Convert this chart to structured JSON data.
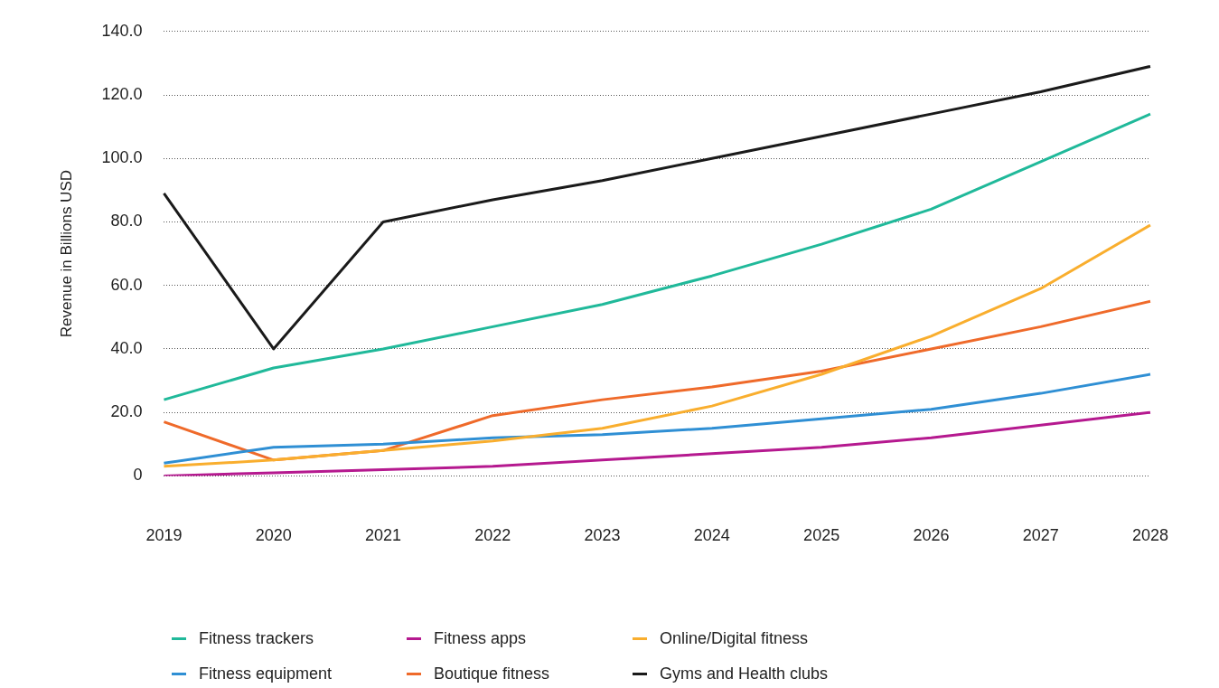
{
  "chart_data": {
    "type": "line",
    "ylabel": "Revenue in Billions USD",
    "categories": [
      "2019",
      "2020",
      "2021",
      "2022",
      "2023",
      "2024",
      "2025",
      "2026",
      "2027",
      "2028"
    ],
    "series": [
      {
        "name": "Fitness trackers",
        "color": "#20b99a",
        "values": [
          24,
          34,
          40,
          47,
          54,
          63,
          73,
          84,
          99,
          114
        ]
      },
      {
        "name": "Fitness apps",
        "color": "#b5198f",
        "values": [
          0,
          1,
          2,
          3,
          5,
          7,
          9,
          12,
          16,
          20
        ]
      },
      {
        "name": "Online/Digital fitness",
        "color": "#f9ae2e",
        "values": [
          3,
          5,
          8,
          11,
          15,
          22,
          32,
          44,
          59,
          79
        ]
      },
      {
        "name": "Fitness equipment",
        "color": "#2f8fd4",
        "values": [
          4,
          9,
          10,
          12,
          13,
          15,
          18,
          21,
          26,
          32
        ]
      },
      {
        "name": "Boutique fitness",
        "color": "#ef6a2a",
        "values": [
          17,
          5,
          8,
          19,
          24,
          28,
          33,
          40,
          47,
          55
        ]
      },
      {
        "name": "Gyms and Health clubs",
        "color": "#1a1a1a",
        "values": [
          89,
          40,
          80,
          87,
          93,
          100,
          107,
          114,
          121,
          129
        ]
      }
    ],
    "ylim": [
      0,
      140
    ],
    "yticks": [
      {
        "value": 0,
        "label": "0"
      },
      {
        "value": 20,
        "label": "20.0"
      },
      {
        "value": 40,
        "label": "40.0"
      },
      {
        "value": 60,
        "label": "60.0"
      },
      {
        "value": 80,
        "label": "80.0"
      },
      {
        "value": 100,
        "label": "100.0"
      },
      {
        "value": 120,
        "label": "120.0"
      },
      {
        "value": 140,
        "label": "140.0"
      }
    ],
    "grid": "y",
    "legend": "bottom",
    "marker": "none",
    "line_style": "solid"
  }
}
